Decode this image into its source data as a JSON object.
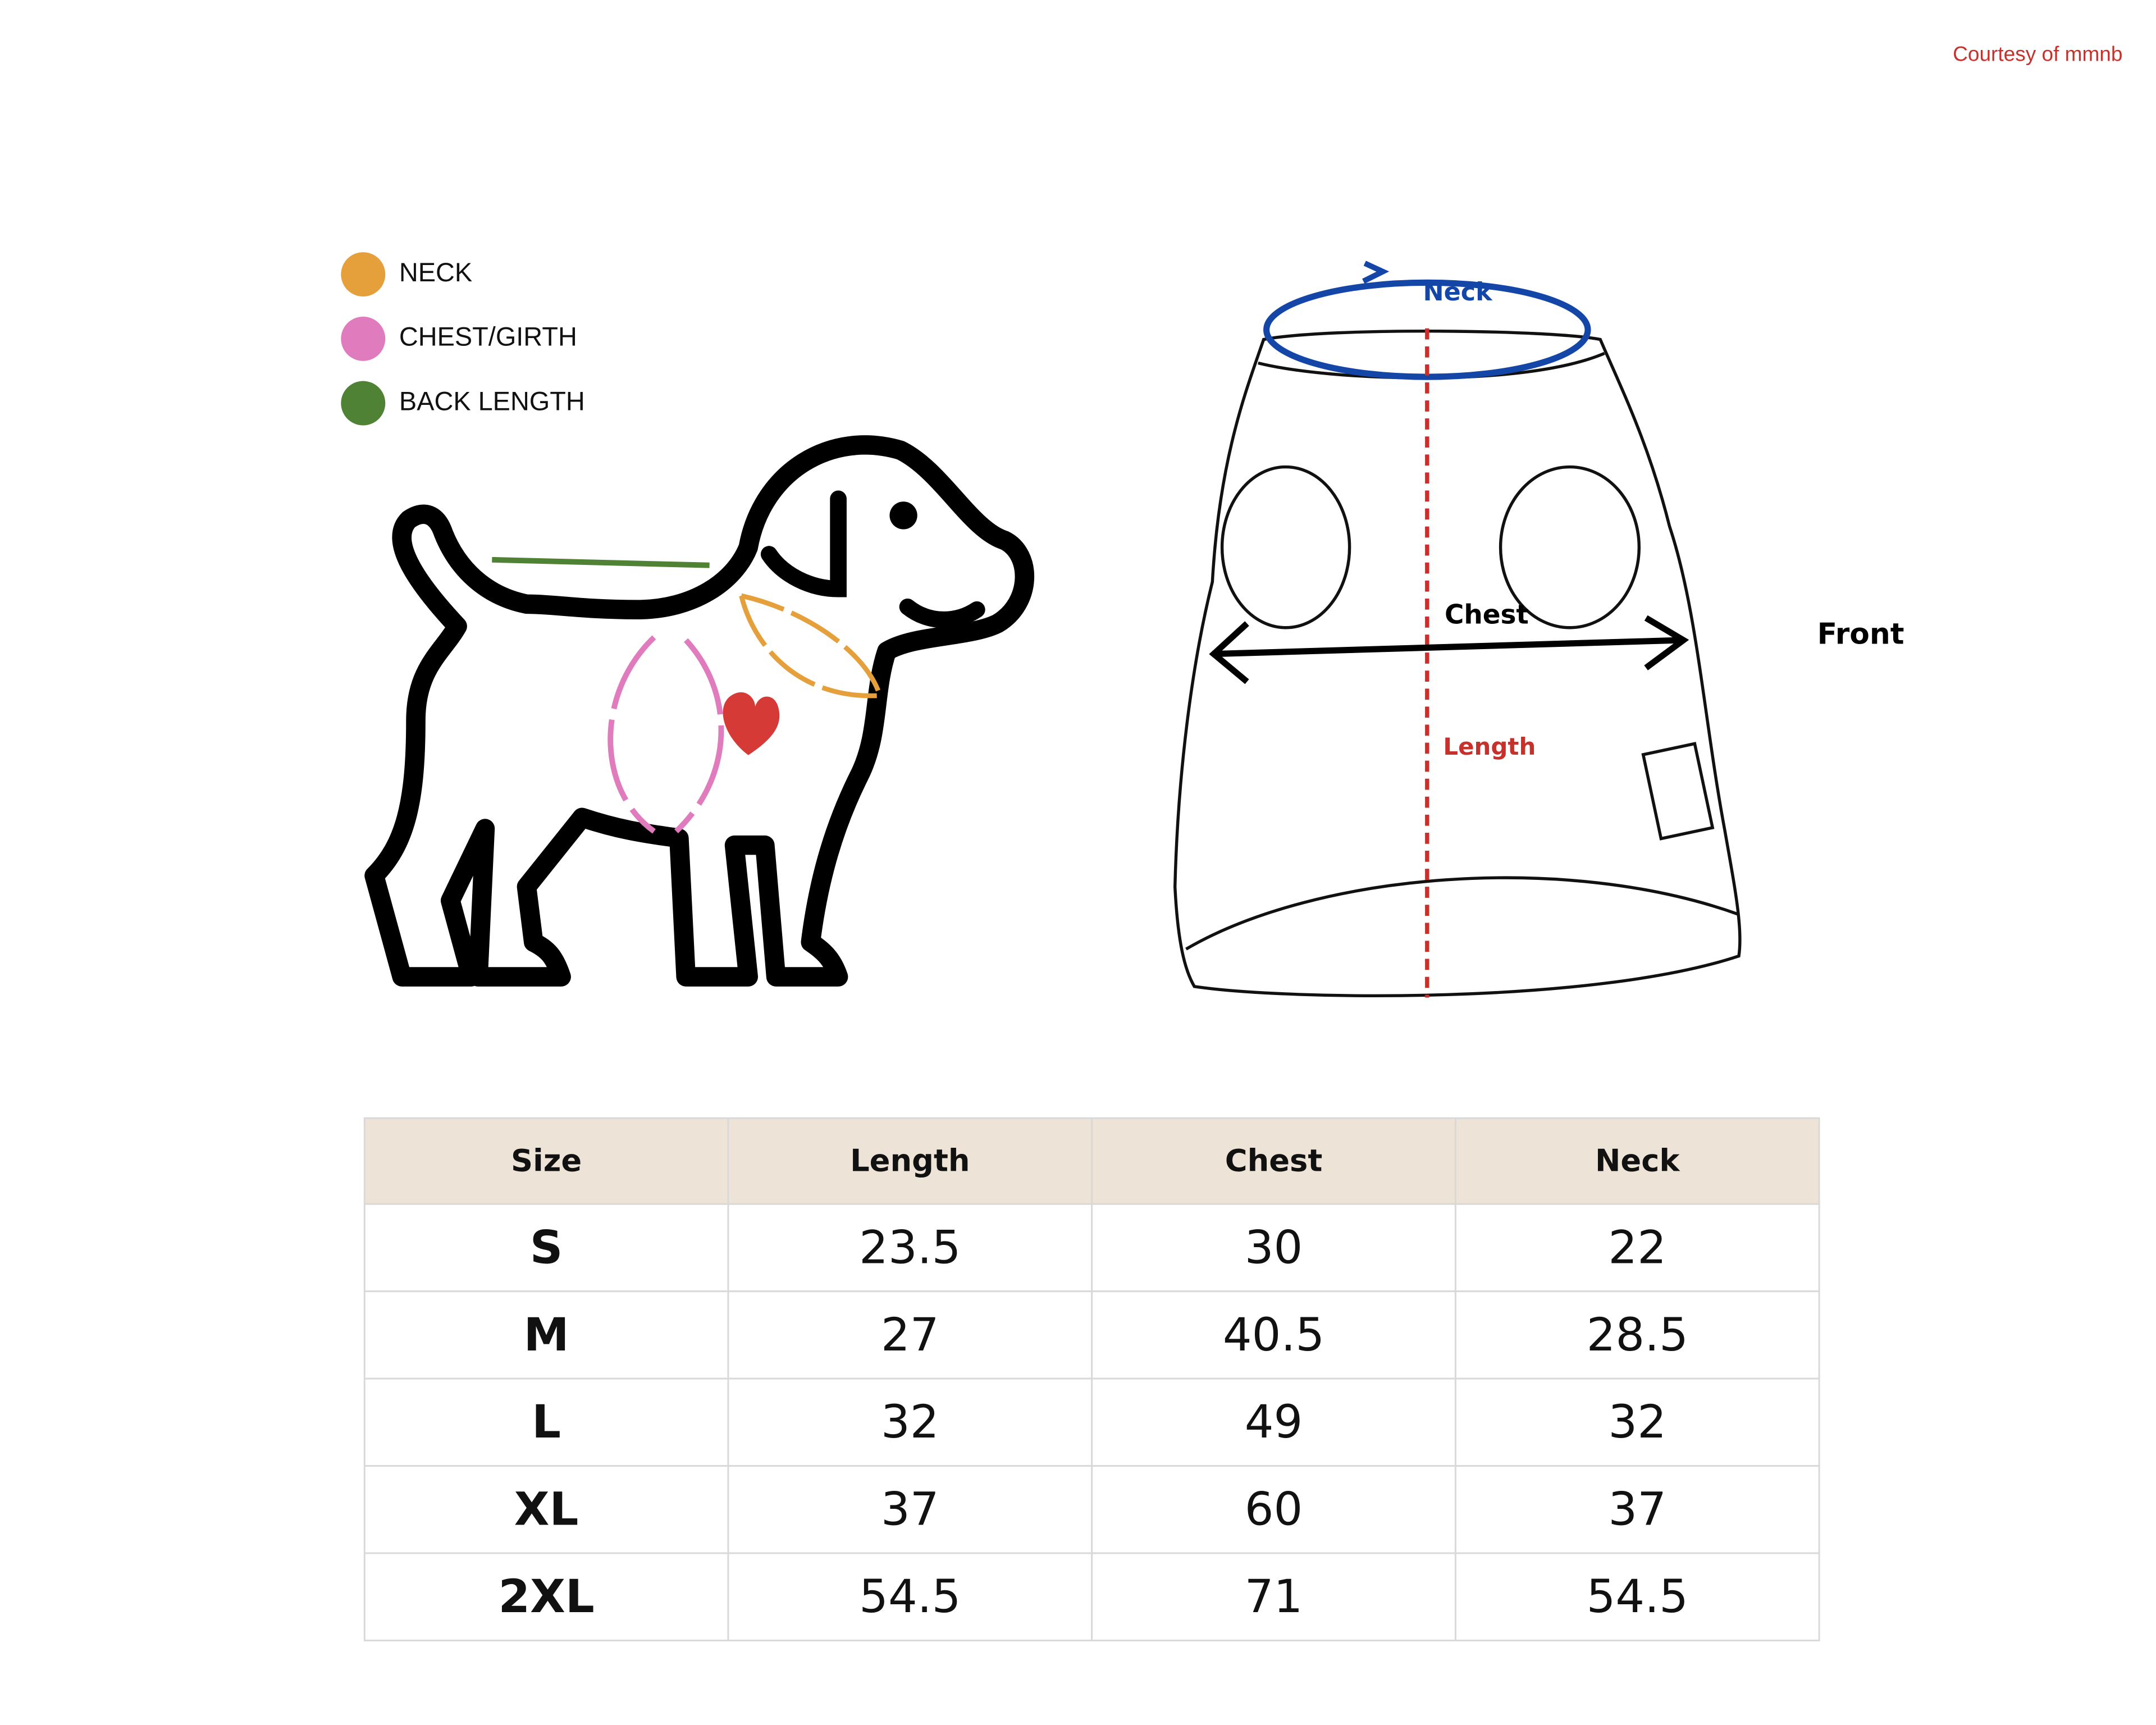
{
  "courtesy": "Courtesy of mmnb",
  "legend": [
    {
      "label": "NECK",
      "color": "#e5a03c"
    },
    {
      "label": "CHEST/GIRTH",
      "color": "#e07bbd"
    },
    {
      "label": "BACK LENGTH",
      "color": "#4f8234"
    }
  ],
  "diagram": {
    "neck": "Neck",
    "chest": "Chest",
    "length": "Length",
    "front": "Front"
  },
  "table": {
    "header": [
      "Size",
      "Length",
      "Chest",
      "Neck"
    ],
    "rows": [
      [
        "S",
        23.5,
        30,
        22
      ],
      [
        "M",
        27,
        40.5,
        28.5
      ],
      [
        "L",
        32,
        49,
        32
      ],
      [
        "XL",
        37,
        60,
        37
      ],
      [
        "2XL",
        54.5,
        71,
        54.5
      ]
    ]
  }
}
